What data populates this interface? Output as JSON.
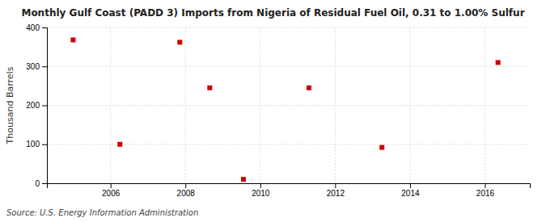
{
  "chart_data": {
    "type": "scatter",
    "title": "Monthly Gulf Coast (PADD 3) Imports from Nigeria of Residual Fuel Oil, 0.31 to 1.00% Sulfur",
    "ylabel": "Thousand Barrels",
    "annotation": "Source: U.S. Energy Information Administration",
    "x": [
      2005.0,
      2006.25,
      2007.85,
      2008.65,
      2009.55,
      2011.3,
      2013.25,
      2016.35
    ],
    "values": [
      368,
      100,
      362,
      245,
      10,
      245,
      92,
      310
    ],
    "color": "#cc0000",
    "marker": "square",
    "xlim": [
      2004.3,
      2017.2
    ],
    "ylim": [
      0,
      400
    ],
    "xticks": [
      2006,
      2008,
      2010,
      2012,
      2014,
      2016
    ],
    "yticks": [
      0,
      100,
      200,
      300,
      400
    ],
    "grid": true
  }
}
